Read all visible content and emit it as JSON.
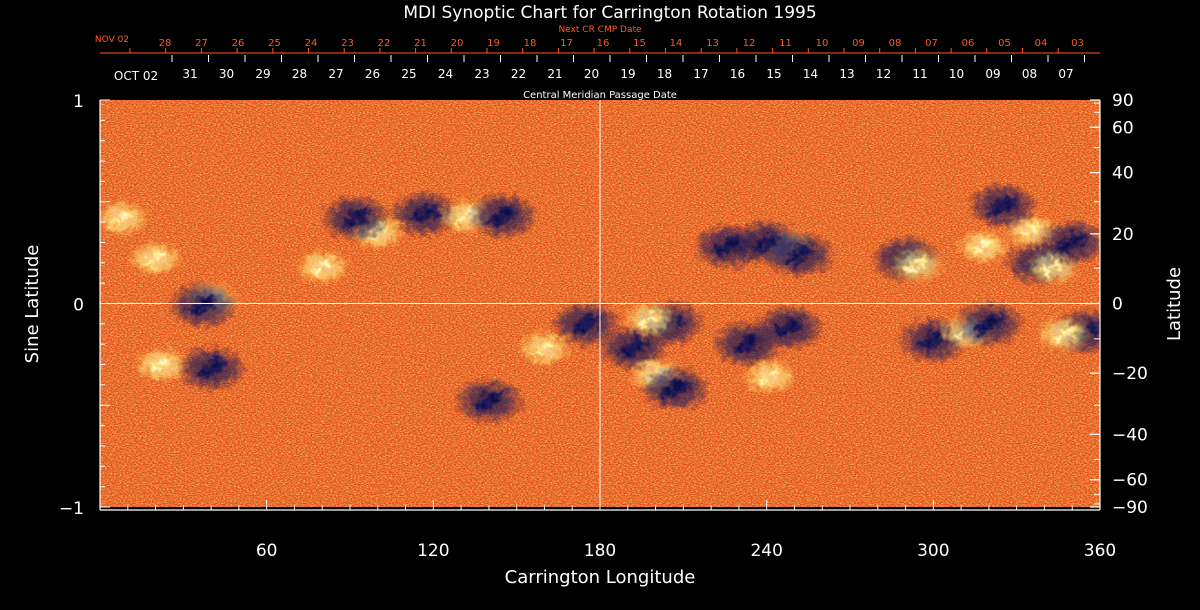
{
  "chart_data": {
    "type": "heatmap",
    "title": "MDI Synoptic Chart for Carrington Rotation 1995",
    "xlabel": "Carrington Longitude",
    "ylabel_left": "Sine Latitude",
    "ylabel_right": "Latitude",
    "xlim": [
      0,
      360
    ],
    "ylim": [
      -1,
      1
    ],
    "x_ticks": [
      60,
      120,
      180,
      240,
      300,
      360
    ],
    "y_ticks_left": [
      1,
      0,
      -1
    ],
    "y_ticks_left_labels": [
      "1",
      "0",
      "−1"
    ],
    "y_ticks_right_deg": [
      90,
      60,
      40,
      20,
      0,
      -20,
      -40,
      -60,
      -90
    ],
    "y_ticks_right_labels": [
      "90",
      "60",
      "40",
      "20",
      "0",
      "−20",
      "−40",
      "−60",
      "−90"
    ],
    "crosshair": {
      "longitude": 180,
      "sine_latitude": 0
    },
    "top_axis_next_cr": {
      "label": "Next CR CMP Date",
      "month_label": "NOV 02",
      "dates": [
        "28",
        "27",
        "26",
        "25",
        "24",
        "23",
        "22",
        "21",
        "20",
        "19",
        "18",
        "17",
        "16",
        "15",
        "14",
        "13",
        "12",
        "11",
        "10",
        "09",
        "08",
        "07",
        "06",
        "05",
        "04",
        "03"
      ]
    },
    "top_axis_cmp": {
      "label": "Central Meridian Passage Date",
      "month_label": "OCT 02",
      "dates": [
        "31",
        "30",
        "29",
        "28",
        "27",
        "26",
        "25",
        "24",
        "23",
        "22",
        "21",
        "20",
        "19",
        "18",
        "17",
        "16",
        "15",
        "14",
        "13",
        "12",
        "11",
        "10",
        "09",
        "08",
        "07"
      ]
    },
    "colors": {
      "background_field": "#e64a10",
      "positive_polarity": "#fff8c0",
      "negative_polarity": "#12124a",
      "next_cr_axis": "#ff5a1e",
      "axes": "#ffffff"
    },
    "regions": [
      {
        "lon": 117,
        "slat": 0.44,
        "pol": "neg"
      },
      {
        "lon": 132,
        "slat": 0.43,
        "pol": "pos"
      },
      {
        "lon": 145,
        "slat": 0.43,
        "pol": "neg"
      },
      {
        "lon": 100,
        "slat": 0.35,
        "pol": "pos"
      },
      {
        "lon": 92,
        "slat": 0.42,
        "pol": "neg"
      },
      {
        "lon": 40,
        "slat": 0.02,
        "pol": "pos"
      },
      {
        "lon": 37,
        "slat": -0.01,
        "pol": "neg"
      },
      {
        "lon": 40,
        "slat": -0.32,
        "pol": "neg"
      },
      {
        "lon": 22,
        "slat": -0.3,
        "pol": "pos"
      },
      {
        "lon": 8,
        "slat": 0.42,
        "pol": "pos"
      },
      {
        "lon": 20,
        "slat": 0.22,
        "pol": "pos"
      },
      {
        "lon": 247,
        "slat": 0.28,
        "pol": "pos"
      },
      {
        "lon": 240,
        "slat": 0.3,
        "pol": "neg"
      },
      {
        "lon": 252,
        "slat": 0.24,
        "pol": "neg"
      },
      {
        "lon": 226,
        "slat": 0.28,
        "pol": "neg"
      },
      {
        "lon": 290,
        "slat": 0.22,
        "pol": "neg"
      },
      {
        "lon": 294,
        "slat": 0.19,
        "pol": "pos"
      },
      {
        "lon": 338,
        "slat": 0.2,
        "pol": "neg"
      },
      {
        "lon": 343,
        "slat": 0.18,
        "pol": "pos"
      },
      {
        "lon": 335,
        "slat": 0.36,
        "pol": "pos"
      },
      {
        "lon": 318,
        "slat": 0.28,
        "pol": "pos"
      },
      {
        "lon": 325,
        "slat": 0.48,
        "pol": "neg"
      },
      {
        "lon": 350,
        "slat": 0.3,
        "pol": "neg"
      },
      {
        "lon": 192,
        "slat": -0.22,
        "pol": "neg"
      },
      {
        "lon": 200,
        "slat": -0.35,
        "pol": "pos"
      },
      {
        "lon": 207,
        "slat": -0.42,
        "pol": "neg"
      },
      {
        "lon": 205,
        "slat": -0.1,
        "pol": "neg"
      },
      {
        "lon": 198,
        "slat": -0.08,
        "pol": "pos"
      },
      {
        "lon": 233,
        "slat": -0.2,
        "pol": "neg"
      },
      {
        "lon": 241,
        "slat": -0.36,
        "pol": "pos"
      },
      {
        "lon": 248,
        "slat": -0.12,
        "pol": "neg"
      },
      {
        "lon": 300,
        "slat": -0.18,
        "pol": "neg"
      },
      {
        "lon": 312,
        "slat": -0.14,
        "pol": "pos"
      },
      {
        "lon": 320,
        "slat": -0.1,
        "pol": "neg"
      },
      {
        "lon": 355,
        "slat": -0.14,
        "pol": "neg"
      },
      {
        "lon": 347,
        "slat": -0.15,
        "pol": "pos"
      },
      {
        "lon": 160,
        "slat": -0.22,
        "pol": "pos"
      },
      {
        "lon": 175,
        "slat": -0.1,
        "pol": "neg"
      },
      {
        "lon": 80,
        "slat": 0.18,
        "pol": "pos"
      },
      {
        "lon": 140,
        "slat": -0.48,
        "pol": "neg"
      }
    ]
  }
}
